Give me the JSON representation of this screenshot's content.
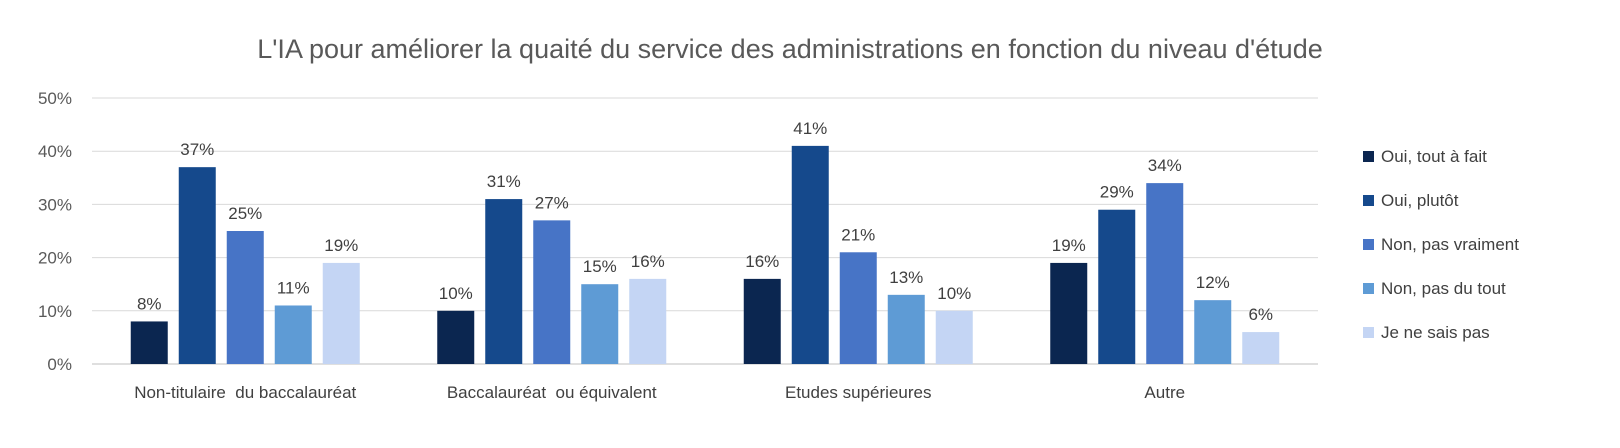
{
  "chart_data": {
    "type": "bar",
    "title": "L'IA pour améliorer la quaité du service des administrations en fonction du niveau d'étude",
    "xlabel": "",
    "ylabel": "",
    "ylim": [
      0,
      50
    ],
    "yticks": [
      "0%",
      "10%",
      "20%",
      "30%",
      "40%",
      "50%"
    ],
    "ytick_values": [
      0,
      10,
      20,
      30,
      40,
      50
    ],
    "grid": true,
    "legend_position": "right",
    "categories": [
      "Non-titulaire  du baccalauréat",
      "Baccalauréat  ou équivalent",
      "Etudes supérieures",
      "Autre"
    ],
    "series": [
      {
        "name": "Oui, tout à fait",
        "color": "#0b2650",
        "values": [
          8,
          10,
          16,
          19
        ],
        "labels": [
          "8%",
          "10%",
          "16%",
          "19%"
        ]
      },
      {
        "name": "Oui, plutôt",
        "color": "#15498c",
        "values": [
          37,
          31,
          41,
          29
        ],
        "labels": [
          "37%",
          "31%",
          "41%",
          "29%"
        ]
      },
      {
        "name": "Non, pas vraiment",
        "color": "#4774c6",
        "values": [
          25,
          27,
          21,
          34
        ],
        "labels": [
          "25%",
          "27%",
          "21%",
          "34%"
        ]
      },
      {
        "name": "Non, pas du tout",
        "color": "#5e9bd5",
        "values": [
          11,
          15,
          13,
          12
        ],
        "labels": [
          "11%",
          "15%",
          "13%",
          "12%"
        ]
      },
      {
        "name": "Je ne sais pas",
        "color": "#c4d5f4",
        "values": [
          19,
          16,
          10,
          6
        ],
        "labels": [
          "19%",
          "16%",
          "10%",
          "6%"
        ]
      }
    ]
  }
}
